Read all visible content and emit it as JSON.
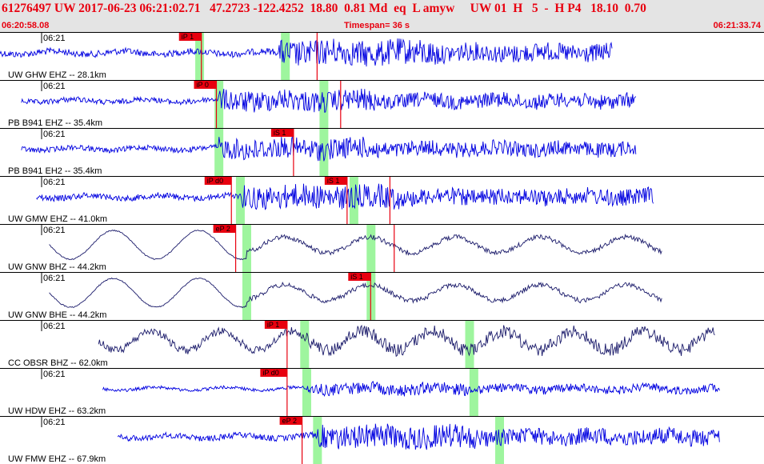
{
  "header": {
    "title": "61276497 UW 2017-06-23 06:21:02.71   47.2723 -122.4252  18.80  0.81 Md  eq  L amyw     UW 01  H   5  -  H P4   18.10  0.70",
    "start_time": "06:20:58.08",
    "timespan": "Timespan=  36 s",
    "end_time": "06:21:33.74"
  },
  "colors": {
    "header_bg": "#e4e4e4",
    "header_text": "#e8000f",
    "trace_short_period": "#0000e0",
    "trace_broadband": "#1a1a6a",
    "pick_red": "#e8000f",
    "window_green": "#9ef59e",
    "separator": "#000000"
  },
  "traces": [
    {
      "time": "06:21",
      "label": "UW GHW EHZ -- 28.1km",
      "kind": "short",
      "start_s": 0.0,
      "end_s": 28.6,
      "amp": 0.55,
      "picks": [
        {
          "text": "iP 1",
          "t": 9.4
        },
        {
          "text": "",
          "t": 14.8
        }
      ],
      "windows": [
        9.3,
        13.3
      ],
      "onset_s": 13.0
    },
    {
      "time": "06:21",
      "label": "PB B941 EHZ -- 35.4km",
      "kind": "short",
      "start_s": 1.0,
      "end_s": 29.7,
      "amp": 0.45,
      "picks": [
        {
          "text": "iP 0",
          "t": 10.1
        },
        {
          "text": "",
          "t": 15.9
        }
      ],
      "windows": [
        10.2,
        15.1
      ],
      "onset_s": 10.2
    },
    {
      "time": "06:21",
      "label": "PB B941 EH2 -- 35.4km",
      "kind": "short",
      "start_s": 1.0,
      "end_s": 29.7,
      "amp": 0.45,
      "picks": [
        {
          "text": "iS 1",
          "t": 13.7
        }
      ],
      "windows": [
        10.2,
        15.1
      ],
      "onset_s": 10.2
    },
    {
      "time": "06:21",
      "label": "UW GMW EHZ -- 41.0km",
      "kind": "short",
      "start_s": 1.7,
      "end_s": 30.5,
      "amp": 0.5,
      "picks": [
        {
          "text": "iP d0",
          "t": 10.8
        },
        {
          "text": "iS 1",
          "t": 16.2
        },
        {
          "text": "",
          "t": 18.2
        }
      ],
      "windows": [
        11.2,
        16.5
      ],
      "onset_s": 11.2
    },
    {
      "time": "06:21",
      "label": "UW GNW BHZ -- 44.2km",
      "kind": "broad",
      "start_s": 2.3,
      "end_s": 30.9,
      "amp": 0.55,
      "picks": [
        {
          "text": "eP 2",
          "t": 11.0
        },
        {
          "text": "",
          "t": 18.4
        }
      ],
      "windows": [
        11.5,
        17.3
      ],
      "onset_s": 11.5
    },
    {
      "time": "06:21",
      "label": "UW GNW BHE -- 44.2km",
      "kind": "broad",
      "start_s": 2.3,
      "end_s": 30.9,
      "amp": 0.55,
      "picks": [
        {
          "text": "iS 1",
          "t": 17.3
        }
      ],
      "windows": [
        11.5,
        17.3
      ],
      "onset_s": 11.5
    },
    {
      "time": "06:21",
      "label": "CC OBSR BHZ -- 62.0km",
      "kind": "broad2",
      "start_s": 4.6,
      "end_s": 33.4,
      "amp": 0.5,
      "picks": [
        {
          "text": "iP 1",
          "t": 13.4
        }
      ],
      "windows": [
        14.2,
        21.9
      ],
      "onset_s": 14.2
    },
    {
      "time": "06:21",
      "label": "UW HDW EHZ -- 63.2km",
      "kind": "short",
      "start_s": 4.8,
      "end_s": 33.6,
      "amp": 0.25,
      "picks": [
        {
          "text": "iP d0",
          "t": 13.4
        }
      ],
      "windows": [
        14.3,
        22.1
      ],
      "onset_s": 14.3
    },
    {
      "time": "06:21",
      "label": "UW FMW EHZ -- 67.9km",
      "kind": "short",
      "start_s": 5.5,
      "end_s": 33.6,
      "amp": 0.5,
      "picks": [
        {
          "text": "eP 2",
          "t": 14.1
        }
      ],
      "windows": [
        14.8,
        23.3
      ],
      "onset_s": 14.8
    }
  ]
}
